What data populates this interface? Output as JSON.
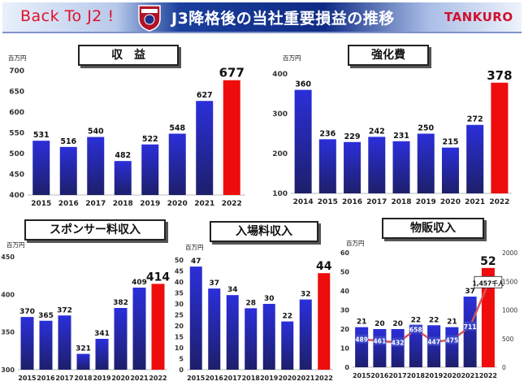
{
  "header": {
    "back_text": "Back To J2 !",
    "title": "J3降格後の当社重要損益の推移",
    "brand": "TANKURO"
  },
  "colors": {
    "bar_top": "#2b2fd9",
    "bar_bottom": "#1d1f6a",
    "highlight": "#ee0c0c",
    "line": "#d9535a"
  },
  "panels": {
    "revenue": {
      "title": "収　益",
      "unit": "百万円"
    },
    "strengthening": {
      "title": "強化費",
      "unit": "百万円"
    },
    "sponsor": {
      "title": "スポンサー料収入",
      "unit": "百万円"
    },
    "admission": {
      "title": "入場料収入",
      "unit": "百万円"
    },
    "merch": {
      "title": "物販収入",
      "unit": "百万円",
      "right_unit": "千人"
    }
  },
  "chart_data": [
    {
      "id": "revenue",
      "type": "bar",
      "categories": [
        "2015",
        "2016",
        "2017",
        "2018",
        "2019",
        "2020",
        "2021",
        "2022"
      ],
      "values": [
        531,
        516,
        540,
        482,
        522,
        548,
        627,
        677
      ],
      "highlight_index": 7,
      "ylim": [
        400,
        700
      ],
      "yticks": [
        400,
        450,
        500,
        550,
        600,
        650,
        700
      ]
    },
    {
      "id": "strengthening",
      "type": "bar",
      "categories": [
        "2014",
        "2015",
        "2016",
        "2017",
        "2018",
        "2019",
        "2020",
        "2021",
        "2022"
      ],
      "values": [
        360,
        236,
        229,
        242,
        231,
        250,
        215,
        272,
        378
      ],
      "highlight_index": 8,
      "ylim": [
        100,
        400
      ],
      "yticks": [
        100,
        200,
        300,
        400
      ]
    },
    {
      "id": "sponsor",
      "type": "bar",
      "categories": [
        "2015",
        "2016",
        "2017",
        "2018",
        "2019",
        "2020",
        "2021",
        "2022"
      ],
      "values": [
        370,
        365,
        372,
        321,
        341,
        382,
        409,
        414
      ],
      "highlight_index": 7,
      "ylim": [
        300,
        450
      ],
      "yticks": [
        300,
        350,
        400,
        450
      ]
    },
    {
      "id": "admission",
      "type": "bar",
      "categories": [
        "2015",
        "2016",
        "2017",
        "2018",
        "2019",
        "2020",
        "2021",
        "2022"
      ],
      "values": [
        47,
        37,
        34,
        28,
        30,
        22,
        32,
        44
      ],
      "highlight_index": 7,
      "ylim": [
        0,
        50
      ],
      "yticks": [
        0,
        5,
        10,
        15,
        20,
        25,
        30,
        35,
        40,
        45,
        50
      ]
    },
    {
      "id": "merch",
      "type": "bar",
      "categories": [
        "2015",
        "2016",
        "2017",
        "2018",
        "2019",
        "2020",
        "2021",
        "2022"
      ],
      "values": [
        21,
        20,
        20,
        22,
        22,
        21,
        37,
        52
      ],
      "highlight_index": 7,
      "ylim": [
        0,
        60
      ],
      "yticks": [
        0,
        10,
        20,
        30,
        40,
        50,
        60
      ],
      "line_series": {
        "axis": "right",
        "values": [
          489,
          461,
          432,
          658,
          447,
          475,
          711,
          1457
        ],
        "ylim": [
          0,
          2000
        ],
        "yticks": [
          0,
          500,
          1000,
          1500,
          2000
        ],
        "last_label": "1,457千人"
      }
    }
  ]
}
